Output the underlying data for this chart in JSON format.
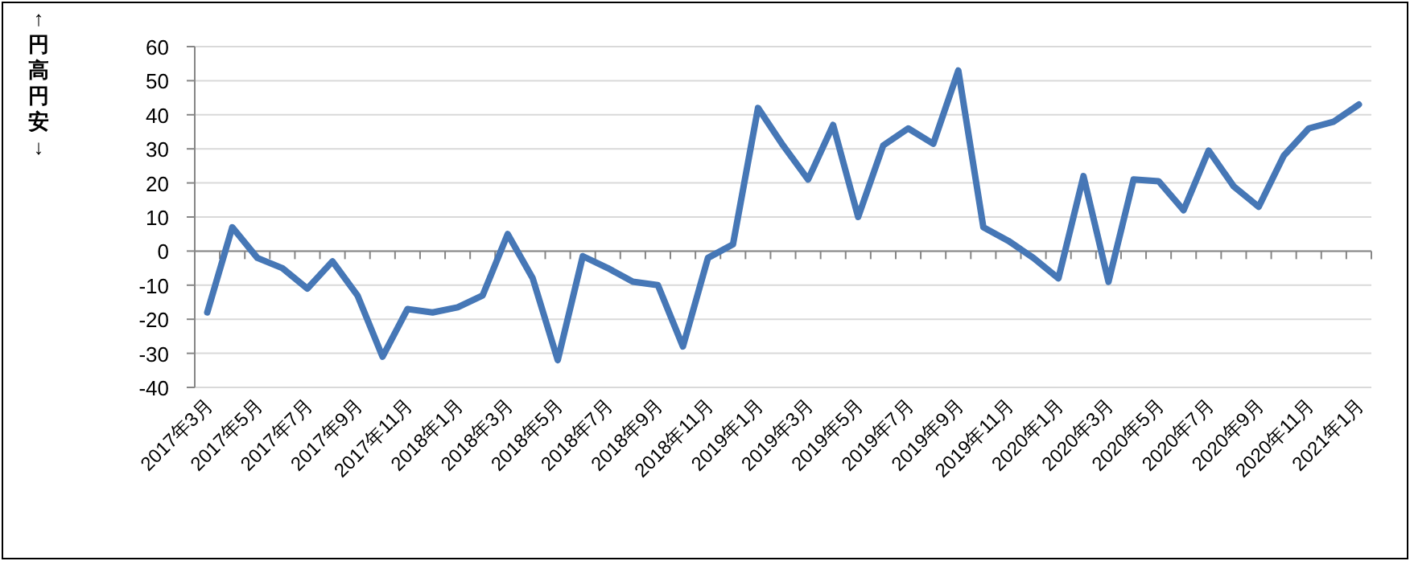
{
  "chart_data": {
    "type": "line",
    "ylabel": "↑円高円安↓",
    "categories": [
      "2017年3月",
      null,
      "2017年5月",
      null,
      "2017年7月",
      null,
      "2017年9月",
      null,
      "2017年11月",
      null,
      "2018年1月",
      null,
      "2018年3月",
      null,
      "2018年5月",
      null,
      "2018年7月",
      null,
      "2018年9月",
      null,
      "2018年11月",
      null,
      "2019年1月",
      null,
      "2019年3月",
      null,
      "2019年5月",
      null,
      "2019年7月",
      null,
      "2019年9月",
      null,
      "2019年11月",
      null,
      "2020年1月",
      null,
      "2020年3月",
      null,
      "2020年5月",
      null,
      "2020年7月",
      null,
      "2020年9月",
      null,
      "2020年11月",
      null,
      "2021年1月"
    ],
    "series": [
      {
        "color": "#4677b6",
        "values": [
          -18,
          7,
          -2,
          -5,
          -11,
          -3,
          -13,
          -31,
          -17,
          -18,
          -16.5,
          -13,
          5,
          -8,
          -32,
          -1.5,
          -5,
          -9,
          -10,
          -28,
          -2,
          2,
          42,
          31,
          21,
          37,
          10,
          31,
          36,
          31.5,
          53,
          7,
          3,
          -2,
          -8,
          22,
          -9,
          21,
          20.5,
          12,
          29.5,
          19,
          13,
          28,
          36,
          38,
          43
        ]
      }
    ],
    "ylim": [
      -40,
      60
    ],
    "yticks": [
      -40,
      -30,
      -20,
      -10,
      0,
      10,
      20,
      30,
      40,
      50,
      60
    ],
    "grid": "y"
  }
}
